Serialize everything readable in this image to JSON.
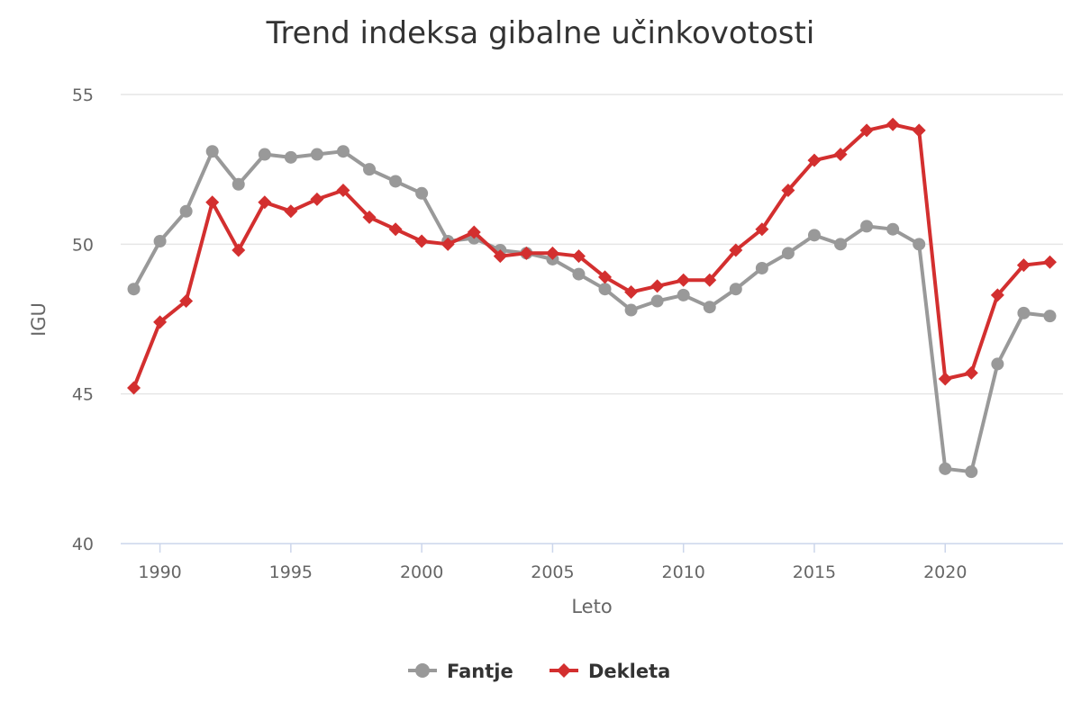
{
  "chart_data": {
    "type": "line",
    "title": "Trend indeksa gibalne učinkovotosti",
    "xlabel": "Leto",
    "ylabel": "IGU",
    "xlim": [
      1988.5,
      2024.5
    ],
    "ylim": [
      40,
      55
    ],
    "x_ticks": [
      "1990",
      "1995",
      "2000",
      "2005",
      "2010",
      "2015",
      "2020"
    ],
    "y_ticks": [
      "40",
      "45",
      "50",
      "55"
    ],
    "grid": true,
    "legend_position": "bottom",
    "x": [
      1989,
      1990,
      1991,
      1992,
      1993,
      1994,
      1995,
      1996,
      1997,
      1998,
      1999,
      2000,
      2001,
      2002,
      2003,
      2004,
      2005,
      2006,
      2007,
      2008,
      2009,
      2010,
      2011,
      2012,
      2013,
      2014,
      2015,
      2016,
      2017,
      2018,
      2019,
      2020,
      2021,
      2022,
      2023,
      2024
    ],
    "series": [
      {
        "name": "Fantje",
        "color": "#999999",
        "marker": "circle",
        "values": [
          48.5,
          50.1,
          51.1,
          53.1,
          52.0,
          53.0,
          52.9,
          53.0,
          53.1,
          52.5,
          52.1,
          51.7,
          50.1,
          50.2,
          49.8,
          49.7,
          49.5,
          49.0,
          48.5,
          47.8,
          48.1,
          48.3,
          47.9,
          48.5,
          49.2,
          49.7,
          50.3,
          50.0,
          50.6,
          50.5,
          50.0,
          42.5,
          42.4,
          46.0,
          47.7,
          47.6
        ]
      },
      {
        "name": "Dekleta",
        "color": "#d32f2f",
        "marker": "diamond",
        "values": [
          45.2,
          47.4,
          48.1,
          51.4,
          49.8,
          51.4,
          51.1,
          51.5,
          51.8,
          50.9,
          50.5,
          50.1,
          50.0,
          50.4,
          49.6,
          49.7,
          49.7,
          49.6,
          48.9,
          48.4,
          48.6,
          48.8,
          48.8,
          49.8,
          50.5,
          51.8,
          52.8,
          53.0,
          53.8,
          54.0,
          53.8,
          45.5,
          45.7,
          48.3,
          49.3,
          49.4
        ]
      }
    ]
  }
}
